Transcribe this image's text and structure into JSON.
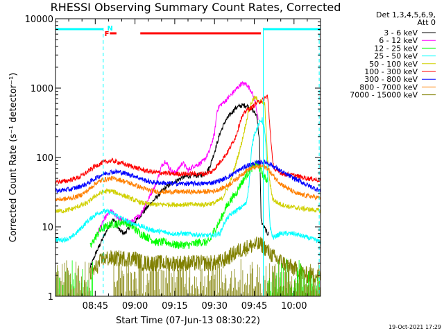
{
  "chart_data": {
    "type": "line",
    "title": "RHESSI Observing Summary Count Rates, Corrected",
    "xlabel": "Start Time (07-Jun-13 08:30:22)",
    "ylabel": "Corrected Count Rate (s⁻¹ detector⁻¹)",
    "yscale": "log",
    "ylim": [
      1,
      10000
    ],
    "xlim_minutes": [
      0,
      100
    ],
    "x_ticks": [
      {
        "t": 15,
        "label": "08:45"
      },
      {
        "t": 30,
        "label": "09:00"
      },
      {
        "t": 45,
        "label": "09:15"
      },
      {
        "t": 60,
        "label": "09:30"
      },
      {
        "t": 75,
        "label": "09:45"
      },
      {
        "t": 90,
        "label": "10:00"
      }
    ],
    "y_ticks": [
      {
        "v": 1,
        "label": "1"
      },
      {
        "v": 10,
        "label": "10"
      },
      {
        "v": 100,
        "label": "100"
      },
      {
        "v": 1000,
        "label": "1000"
      },
      {
        "v": 10000,
        "label": "10000"
      }
    ],
    "legend_header": [
      "Det 1,3,4,5,6,9,",
      "Att 0"
    ],
    "series": [
      {
        "name": "3 - 6 keV",
        "color": "#000000",
        "points": [
          [
            13,
            2.5
          ],
          [
            15,
            4
          ],
          [
            18,
            7
          ],
          [
            20,
            10
          ],
          [
            22,
            13
          ],
          [
            24,
            9
          ],
          [
            26,
            8
          ],
          [
            28,
            10
          ],
          [
            31,
            13
          ],
          [
            34,
            18
          ],
          [
            37,
            24
          ],
          [
            40,
            32
          ],
          [
            42,
            38
          ],
          [
            45,
            45
          ],
          [
            48,
            52
          ],
          [
            51,
            55
          ],
          [
            54,
            55
          ],
          [
            56,
            57
          ],
          [
            58,
            70
          ],
          [
            60,
            120
          ],
          [
            62,
            220
          ],
          [
            64,
            330
          ],
          [
            66,
            420
          ],
          [
            68,
            520
          ],
          [
            70,
            560
          ],
          [
            72,
            560
          ],
          [
            74,
            500
          ],
          [
            76,
            400
          ],
          [
            77,
            160
          ],
          [
            77.6,
            12
          ],
          [
            80,
            8
          ],
          [
            80.5,
            8
          ]
        ]
      },
      {
        "name": "6 - 12 keV",
        "color": "#ff00ff",
        "points": [
          [
            15,
            7
          ],
          [
            17,
            10
          ],
          [
            19,
            14
          ],
          [
            21,
            17
          ],
          [
            23,
            14
          ],
          [
            26,
            12
          ],
          [
            29,
            12
          ],
          [
            32,
            15
          ],
          [
            35,
            25
          ],
          [
            38,
            42
          ],
          [
            40,
            75
          ],
          [
            41.5,
            90
          ],
          [
            43,
            70
          ],
          [
            44.5,
            60
          ],
          [
            46,
            65
          ],
          [
            48,
            85
          ],
          [
            50,
            65
          ],
          [
            52,
            75
          ],
          [
            54,
            80
          ],
          [
            56,
            90
          ],
          [
            58,
            120
          ],
          [
            60,
            220
          ],
          [
            61,
            480
          ],
          [
            62,
            560
          ],
          [
            64,
            650
          ],
          [
            66,
            780
          ],
          [
            68,
            950
          ],
          [
            70,
            1150
          ],
          [
            72,
            1150
          ],
          [
            74,
            900
          ],
          [
            75.5,
            600
          ],
          [
            76.5,
            350
          ]
        ]
      },
      {
        "name": "12 - 25 keV",
        "color": "#00ff00",
        "points": [
          [
            13,
            5
          ],
          [
            15,
            7
          ],
          [
            17,
            9
          ],
          [
            19,
            10
          ],
          [
            21,
            11
          ],
          [
            23,
            11
          ],
          [
            26,
            12
          ],
          [
            29,
            10
          ],
          [
            32,
            8
          ],
          [
            35,
            7
          ],
          [
            38,
            6
          ],
          [
            42,
            6
          ],
          [
            45,
            5.5
          ],
          [
            48,
            5.5
          ],
          [
            51,
            5.5
          ],
          [
            54,
            6
          ],
          [
            56,
            6
          ],
          [
            58,
            6
          ],
          [
            60,
            9
          ],
          [
            62,
            12
          ],
          [
            64,
            18
          ],
          [
            66,
            24
          ],
          [
            68,
            30
          ],
          [
            70,
            42
          ],
          [
            72,
            55
          ],
          [
            74,
            70
          ],
          [
            76,
            80
          ],
          [
            78,
            60
          ],
          [
            79,
            50
          ],
          [
            80,
            48
          ]
        ]
      },
      {
        "name": "25 - 50 keV",
        "color": "#00ffff",
        "points": [
          [
            0,
            6.5
          ],
          [
            3,
            6.5
          ],
          [
            6,
            7
          ],
          [
            9,
            9
          ],
          [
            12,
            12
          ],
          [
            15,
            15
          ],
          [
            18,
            17
          ],
          [
            21,
            16
          ],
          [
            24,
            14
          ],
          [
            27,
            12
          ],
          [
            30,
            11
          ],
          [
            33,
            10
          ],
          [
            36,
            9
          ],
          [
            40,
            8.5
          ],
          [
            44,
            8
          ],
          [
            48,
            8
          ],
          [
            52,
            7.8
          ],
          [
            56,
            7.5
          ],
          [
            59,
            7.5
          ],
          [
            62,
            8
          ],
          [
            64,
            12
          ],
          [
            66,
            15
          ],
          [
            68,
            17
          ],
          [
            70,
            19
          ],
          [
            72,
            22
          ],
          [
            73,
            40
          ],
          [
            74,
            130
          ],
          [
            75,
            220
          ],
          [
            76,
            260
          ],
          [
            77,
            320
          ],
          [
            78,
            350
          ],
          [
            79,
            240
          ],
          [
            80,
            60
          ],
          [
            81,
            10
          ],
          [
            82,
            7
          ],
          [
            85,
            8
          ],
          [
            90,
            8
          ],
          [
            95,
            7
          ],
          [
            98,
            6.5
          ],
          [
            100,
            6
          ]
        ]
      },
      {
        "name": "50 - 100 keV",
        "color": "#d0d000",
        "points": [
          [
            0,
            17
          ],
          [
            3,
            17
          ],
          [
            6,
            18
          ],
          [
            9,
            20
          ],
          [
            12,
            22
          ],
          [
            15,
            28
          ],
          [
            18,
            32
          ],
          [
            21,
            33
          ],
          [
            24,
            30
          ],
          [
            27,
            27
          ],
          [
            30,
            24
          ],
          [
            33,
            22
          ],
          [
            36,
            21
          ],
          [
            40,
            21
          ],
          [
            44,
            21
          ],
          [
            48,
            21
          ],
          [
            52,
            21
          ],
          [
            56,
            21
          ],
          [
            60,
            22
          ],
          [
            63,
            26
          ],
          [
            66,
            45
          ],
          [
            68,
            80
          ],
          [
            70,
            150
          ],
          [
            72,
            330
          ],
          [
            73,
            500
          ],
          [
            74,
            620
          ],
          [
            75,
            720
          ],
          [
            76,
            700
          ],
          [
            77,
            650
          ],
          [
            78,
            620
          ],
          [
            79,
            580
          ],
          [
            80,
            95
          ],
          [
            81,
            40
          ],
          [
            82,
            25
          ],
          [
            84,
            22
          ],
          [
            87,
            20
          ],
          [
            90,
            19
          ],
          [
            95,
            18
          ],
          [
            100,
            17
          ]
        ]
      },
      {
        "name": "100 - 300 keV",
        "color": "#ff0000",
        "points": [
          [
            0,
            45
          ],
          [
            3,
            45
          ],
          [
            6,
            48
          ],
          [
            9,
            52
          ],
          [
            12,
            62
          ],
          [
            15,
            75
          ],
          [
            18,
            85
          ],
          [
            21,
            90
          ],
          [
            24,
            85
          ],
          [
            27,
            78
          ],
          [
            30,
            72
          ],
          [
            33,
            66
          ],
          [
            36,
            62
          ],
          [
            40,
            60
          ],
          [
            44,
            58
          ],
          [
            48,
            58
          ],
          [
            52,
            58
          ],
          [
            56,
            58
          ],
          [
            59,
            62
          ],
          [
            62,
            85
          ],
          [
            65,
            120
          ],
          [
            68,
            200
          ],
          [
            70,
            360
          ],
          [
            72,
            480
          ],
          [
            74,
            520
          ],
          [
            76,
            620
          ],
          [
            78,
            660
          ],
          [
            80,
            780
          ],
          [
            81,
            250
          ],
          [
            82,
            80
          ],
          [
            83,
            65
          ],
          [
            86,
            58
          ],
          [
            90,
            55
          ],
          [
            95,
            50
          ],
          [
            100,
            47
          ]
        ]
      },
      {
        "name": "300 - 800 keV",
        "color": "#0000ff",
        "points": [
          [
            0,
            33
          ],
          [
            3,
            34
          ],
          [
            6,
            35
          ],
          [
            9,
            38
          ],
          [
            12,
            42
          ],
          [
            15,
            50
          ],
          [
            18,
            58
          ],
          [
            21,
            62
          ],
          [
            24,
            62
          ],
          [
            27,
            58
          ],
          [
            30,
            54
          ],
          [
            33,
            48
          ],
          [
            36,
            44
          ],
          [
            40,
            43
          ],
          [
            44,
            42
          ],
          [
            48,
            42
          ],
          [
            52,
            42
          ],
          [
            56,
            42
          ],
          [
            60,
            44
          ],
          [
            63,
            48
          ],
          [
            66,
            55
          ],
          [
            69,
            65
          ],
          [
            72,
            75
          ],
          [
            75,
            82
          ],
          [
            78,
            86
          ],
          [
            80,
            84
          ],
          [
            83,
            72
          ],
          [
            86,
            60
          ],
          [
            90,
            50
          ],
          [
            94,
            42
          ],
          [
            97,
            37
          ],
          [
            100,
            33
          ]
        ]
      },
      {
        "name": "800 - 7000 keV",
        "color": "#ff8000",
        "points": [
          [
            0,
            25
          ],
          [
            3,
            25
          ],
          [
            6,
            26
          ],
          [
            9,
            28
          ],
          [
            12,
            33
          ],
          [
            15,
            42
          ],
          [
            18,
            48
          ],
          [
            21,
            50
          ],
          [
            24,
            48
          ],
          [
            27,
            44
          ],
          [
            30,
            40
          ],
          [
            33,
            36
          ],
          [
            36,
            33
          ],
          [
            40,
            32
          ],
          [
            44,
            32
          ],
          [
            48,
            32
          ],
          [
            52,
            32
          ],
          [
            56,
            32
          ],
          [
            60,
            33
          ],
          [
            63,
            36
          ],
          [
            66,
            42
          ],
          [
            69,
            52
          ],
          [
            72,
            65
          ],
          [
            75,
            72
          ],
          [
            78,
            75
          ],
          [
            80,
            70
          ],
          [
            82,
            55
          ],
          [
            85,
            42
          ],
          [
            88,
            35
          ],
          [
            91,
            30
          ],
          [
            95,
            28
          ],
          [
            100,
            26
          ]
        ]
      },
      {
        "name": "7000 - 15000 keV",
        "color": "#808000",
        "points": [
          [
            13,
            2
          ],
          [
            15,
            2.5
          ],
          [
            18,
            3.5
          ],
          [
            21,
            3.5
          ],
          [
            24,
            3.5
          ],
          [
            27,
            3.5
          ],
          [
            30,
            3.5
          ],
          [
            33,
            3
          ],
          [
            36,
            3
          ],
          [
            40,
            3
          ],
          [
            44,
            3
          ],
          [
            48,
            3
          ],
          [
            52,
            3
          ],
          [
            56,
            3
          ],
          [
            60,
            3
          ],
          [
            63,
            3.2
          ],
          [
            66,
            3.8
          ],
          [
            69,
            4.5
          ],
          [
            72,
            5
          ],
          [
            75,
            5.5
          ],
          [
            78,
            5.5
          ],
          [
            80,
            4.5
          ],
          [
            83,
            3.5
          ],
          [
            86,
            3
          ],
          [
            90,
            2.5
          ],
          [
            95,
            2
          ],
          [
            100,
            2
          ]
        ]
      }
    ],
    "annotations": {
      "flags": [
        {
          "label": "N",
          "color": "#00ffff"
        },
        {
          "label": "F",
          "color": "#ff0000"
        }
      ],
      "timestamp": "19-Oct-2021 17:29"
    }
  }
}
